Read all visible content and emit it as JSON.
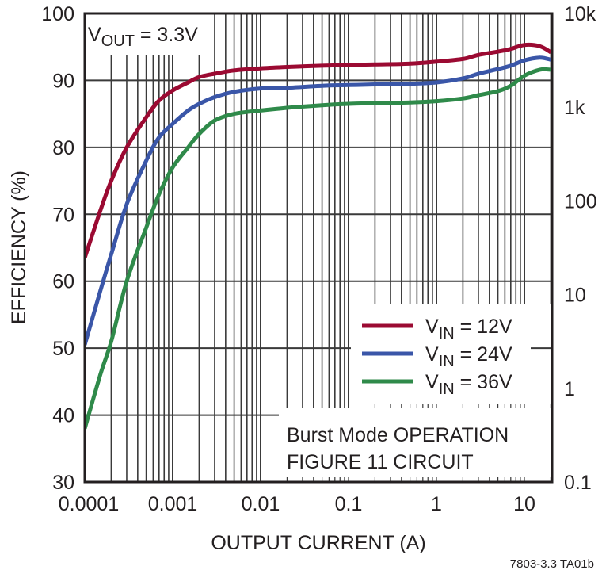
{
  "chart_data": {
    "type": "line",
    "title": "",
    "xlabel": "OUTPUT CURRENT (A)",
    "ylabel": "EFFICIENCY (%)",
    "y2label": "",
    "xscale": "log",
    "xlim": [
      0.0001,
      20
    ],
    "ylim": [
      30,
      100
    ],
    "x_ticks": [
      0.0001,
      0.001,
      0.01,
      0.1,
      1,
      10
    ],
    "x_tick_labels": [
      "0.0001",
      "0.001",
      "0.01",
      "0.1",
      "1",
      "10"
    ],
    "y_ticks": [
      30,
      40,
      50,
      60,
      70,
      80,
      90,
      100
    ],
    "y_tick_labels": [
      "30",
      "40",
      "50",
      "60",
      "70",
      "80",
      "90",
      "100"
    ],
    "y2_tick_labels": [
      "10k",
      "1k",
      "100",
      "10",
      "1",
      "0.1"
    ],
    "grid": true,
    "legend_position": "lower right",
    "annotations": [
      "VOUT = 3.3V",
      "Burst Mode OPERATION",
      "FIGURE 11 CIRCUIT"
    ],
    "footnote": "7803-3.3 TA01b",
    "series": [
      {
        "name": "VIN = 12V",
        "color": "#9b0a32",
        "x": [
          0.0001,
          0.00015,
          0.0002,
          0.0003,
          0.0005,
          0.0007,
          0.001,
          0.0015,
          0.002,
          0.003,
          0.005,
          0.01,
          0.02,
          0.05,
          0.1,
          0.2,
          0.5,
          1,
          2,
          3,
          5,
          7,
          10,
          15,
          20
        ],
        "y": [
          63.5,
          70.5,
          75,
          80,
          84.5,
          87,
          88.5,
          89.7,
          90.5,
          91,
          91.5,
          91.8,
          92,
          92.2,
          92.3,
          92.4,
          92.5,
          92.8,
          93.2,
          93.8,
          94.3,
          94.7,
          95.3,
          95.1,
          94.2
        ]
      },
      {
        "name": "VIN = 24V",
        "color": "#3a56a8",
        "x": [
          0.0001,
          0.00015,
          0.0002,
          0.0003,
          0.0005,
          0.0007,
          0.001,
          0.0015,
          0.002,
          0.003,
          0.005,
          0.01,
          0.02,
          0.05,
          0.1,
          0.2,
          0.5,
          1,
          2,
          3,
          5,
          7,
          10,
          15,
          20
        ],
        "y": [
          50.5,
          58.5,
          64,
          71.5,
          78,
          81.5,
          83.5,
          85.5,
          86.5,
          87.5,
          88.3,
          88.8,
          88.9,
          89.2,
          89.3,
          89.4,
          89.5,
          89.7,
          90.3,
          91,
          91.7,
          92.2,
          93,
          93.4,
          93.1
        ]
      },
      {
        "name": "VIN = 36V",
        "color": "#2f8a4a",
        "x": [
          0.0001,
          0.00015,
          0.0002,
          0.0003,
          0.0005,
          0.0007,
          0.001,
          0.0015,
          0.002,
          0.003,
          0.005,
          0.01,
          0.02,
          0.05,
          0.1,
          0.2,
          0.5,
          1,
          2,
          3,
          5,
          7,
          10,
          15,
          20
        ],
        "y": [
          38,
          46,
          51,
          60,
          68,
          73,
          77,
          80,
          82,
          84,
          85,
          85.5,
          85.9,
          86.3,
          86.5,
          86.6,
          86.7,
          86.9,
          87.3,
          87.8,
          88.4,
          89.2,
          90.7,
          91.6,
          91.6
        ]
      }
    ]
  },
  "legend": {
    "items": [
      {
        "label_main": "V",
        "label_sub": "IN",
        "label_rest": " = 12V",
        "color": "#9b0a32"
      },
      {
        "label_main": "V",
        "label_sub": "IN",
        "label_rest": " = 24V",
        "color": "#3a56a8"
      },
      {
        "label_main": "V",
        "label_sub": "IN",
        "label_rest": " = 36V",
        "color": "#2f8a4a"
      }
    ]
  },
  "annotation": {
    "vout_main": "V",
    "vout_sub": "OUT",
    "vout_rest": " = 3.3V",
    "note_line1": "Burst Mode OPERATION",
    "note_line2": "FIGURE 11 CIRCUIT"
  },
  "footnote": "7803-3.3 TA01b"
}
